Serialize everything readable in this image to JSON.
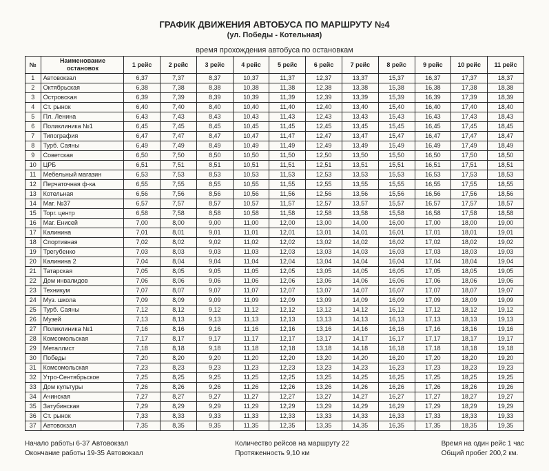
{
  "title": "ГРАФИК  ДВИЖЕНИЯ  АВТОБУСА  ПО  МАРШРУТУ  №4",
  "subtitle": "(ул. Победы - Котельная)",
  "subhead": "время прохождения автобуса по остановкам",
  "columns": [
    "№",
    "Наименование остановок",
    "1 рейс",
    "2 рейс",
    "3 рейс",
    "4 рейс",
    "5 рейс",
    "6 рейс",
    "7 рейс",
    "8 рейс",
    "9 рейс",
    "10 рейс",
    "11 рейс"
  ],
  "rows": [
    [
      "1",
      "Автовокзал",
      "6,37",
      "7,37",
      "8,37",
      "10,37",
      "11,37",
      "12,37",
      "13,37",
      "15,37",
      "16,37",
      "17,37",
      "18,37"
    ],
    [
      "2",
      "Октябрьская",
      "6,38",
      "7,38",
      "8,38",
      "10,38",
      "11,38",
      "12,38",
      "13,38",
      "15,38",
      "16,38",
      "17,38",
      "18,38"
    ],
    [
      "3",
      "Островская",
      "6,39",
      "7,39",
      "8,39",
      "10,39",
      "11,39",
      "12,39",
      "13,39",
      "15,39",
      "16,39",
      "17,39",
      "18,39"
    ],
    [
      "4",
      "Ст. рынок",
      "6,40",
      "7,40",
      "8,40",
      "10,40",
      "11,40",
      "12,40",
      "13,40",
      "15,40",
      "16,40",
      "17,40",
      "18,40"
    ],
    [
      "5",
      "Пл. Ленина",
      "6,43",
      "7,43",
      "8,43",
      "10,43",
      "11,43",
      "12,43",
      "13,43",
      "15,43",
      "16,43",
      "17,43",
      "18,43"
    ],
    [
      "6",
      "Поликлиника №1",
      "6,45",
      "7,45",
      "8,45",
      "10,45",
      "11,45",
      "12,45",
      "13,45",
      "15,45",
      "16,45",
      "17,45",
      "18,45"
    ],
    [
      "7",
      "Типография",
      "6,47",
      "7,47",
      "8,47",
      "10,47",
      "11,47",
      "12,47",
      "13,47",
      "15,47",
      "16,47",
      "17,47",
      "18,47"
    ],
    [
      "8",
      "Турб. Саяны",
      "6,49",
      "7,49",
      "8,49",
      "10,49",
      "11,49",
      "12,49",
      "13,49",
      "15,49",
      "16,49",
      "17,49",
      "18,49"
    ],
    [
      "9",
      "Советская",
      "6,50",
      "7,50",
      "8,50",
      "10,50",
      "11,50",
      "12,50",
      "13,50",
      "15,50",
      "16,50",
      "17,50",
      "18,50"
    ],
    [
      "10",
      "ЦРБ",
      "6,51",
      "7,51",
      "8,51",
      "10,51",
      "11,51",
      "12,51",
      "13,51",
      "15,51",
      "16,51",
      "17,51",
      "18,51"
    ],
    [
      "11",
      "Мебельный магазин",
      "6,53",
      "7,53",
      "8,53",
      "10,53",
      "11,53",
      "12,53",
      "13,53",
      "15,53",
      "16,53",
      "17,53",
      "18,53"
    ],
    [
      "12",
      "Перчаточная ф-ка",
      "6,55",
      "7,55",
      "8,55",
      "10,55",
      "11,55",
      "12,55",
      "13,55",
      "15,55",
      "16,55",
      "17,55",
      "18,55"
    ],
    [
      "13",
      "Котельная",
      "6,56",
      "7,56",
      "8,56",
      "10,56",
      "11,56",
      "12,56",
      "13,56",
      "15,56",
      "16,56",
      "17,56",
      "18,56"
    ],
    [
      "14",
      "Маг. №37",
      "6,57",
      "7,57",
      "8,57",
      "10,57",
      "11,57",
      "12,57",
      "13,57",
      "15,57",
      "16,57",
      "17,57",
      "18,57"
    ],
    [
      "15",
      "Торг. центр",
      "6,58",
      "7,58",
      "8,58",
      "10,58",
      "11,58",
      "12,58",
      "13,58",
      "15,58",
      "16,58",
      "17,58",
      "18,58"
    ],
    [
      "16",
      "Маг. Енисей",
      "7,00",
      "8,00",
      "9,00",
      "11,00",
      "12,00",
      "13,00",
      "14,00",
      "16,00",
      "17,00",
      "18,00",
      "19,00"
    ],
    [
      "17",
      "Калинина",
      "7,01",
      "8,01",
      "9,01",
      "11,01",
      "12,01",
      "13,01",
      "14,01",
      "16,01",
      "17,01",
      "18,01",
      "19,01"
    ],
    [
      "18",
      "Спортивная",
      "7,02",
      "8,02",
      "9,02",
      "11,02",
      "12,02",
      "13,02",
      "14,02",
      "16,02",
      "17,02",
      "18,02",
      "19,02"
    ],
    [
      "19",
      "Трегубенко",
      "7,03",
      "8,03",
      "9,03",
      "11,03",
      "12,03",
      "13,03",
      "14,03",
      "16,03",
      "17,03",
      "18,03",
      "19,03"
    ],
    [
      "20",
      "Калинина 2",
      "7,04",
      "8,04",
      "9,04",
      "11,04",
      "12,04",
      "13,04",
      "14,04",
      "16,04",
      "17,04",
      "18,04",
      "19,04"
    ],
    [
      "21",
      "Татарская",
      "7,05",
      "8,05",
      "9,05",
      "11,05",
      "12,05",
      "13,05",
      "14,05",
      "16,05",
      "17,05",
      "18,05",
      "19,05"
    ],
    [
      "22",
      "Дом инвалидов",
      "7,06",
      "8,06",
      "9,06",
      "11,06",
      "12,06",
      "13,06",
      "14,06",
      "16,06",
      "17,06",
      "18,06",
      "19,06"
    ],
    [
      "23",
      "Техникум",
      "7,07",
      "8,07",
      "9,07",
      "11,07",
      "12,07",
      "13,07",
      "14,07",
      "16,07",
      "17,07",
      "18,07",
      "19,07"
    ],
    [
      "24",
      "Муз. школа",
      "7,09",
      "8,09",
      "9,09",
      "11,09",
      "12,09",
      "13,09",
      "14,09",
      "16,09",
      "17,09",
      "18,09",
      "19,09"
    ],
    [
      "25",
      "Турб. Саяны",
      "7,12",
      "8,12",
      "9,12",
      "11,12",
      "12,12",
      "13,12",
      "14,12",
      "16,12",
      "17,12",
      "18,12",
      "19,12"
    ],
    [
      "26",
      "Музей",
      "7,13",
      "8,13",
      "9,13",
      "11,13",
      "12,13",
      "13,13",
      "14,13",
      "16,13",
      "17,13",
      "18,13",
      "19,13"
    ],
    [
      "27",
      "Поликлиника №1",
      "7,16",
      "8,16",
      "9,16",
      "11,16",
      "12,16",
      "13,16",
      "14,16",
      "16,16",
      "17,16",
      "18,16",
      "19,16"
    ],
    [
      "28",
      "Комсомольская",
      "7,17",
      "8,17",
      "9,17",
      "11,17",
      "12,17",
      "13,17",
      "14,17",
      "16,17",
      "17,17",
      "18,17",
      "19,17"
    ],
    [
      "29",
      "Металлист",
      "7,18",
      "8,18",
      "9,18",
      "11,18",
      "12,18",
      "13,18",
      "14,18",
      "16,18",
      "17,18",
      "18,18",
      "19,18"
    ],
    [
      "30",
      "Победы",
      "7,20",
      "8,20",
      "9,20",
      "11,20",
      "12,20",
      "13,20",
      "14,20",
      "16,20",
      "17,20",
      "18,20",
      "19,20"
    ],
    [
      "31",
      "Комсомольская",
      "7,23",
      "8,23",
      "9,23",
      "11,23",
      "12,23",
      "13,23",
      "14,23",
      "16,23",
      "17,23",
      "18,23",
      "19,23"
    ],
    [
      "32",
      "Утро-Сентябрьское",
      "7,25",
      "8,25",
      "9,25",
      "11,25",
      "12,25",
      "13,25",
      "14,25",
      "16,25",
      "17,25",
      "18,25",
      "19,25"
    ],
    [
      "33",
      "Дом культуры",
      "7,26",
      "8,26",
      "9,26",
      "11,26",
      "12,26",
      "13,26",
      "14,26",
      "16,26",
      "17,26",
      "18,26",
      "19,26"
    ],
    [
      "34",
      "Ачинская",
      "7,27",
      "8,27",
      "9,27",
      "11,27",
      "12,27",
      "13,27",
      "14,27",
      "16,27",
      "17,27",
      "18,27",
      "19,27"
    ],
    [
      "35",
      "Затубинская",
      "7,29",
      "8,29",
      "9,29",
      "11,29",
      "12,29",
      "13,29",
      "14,29",
      "16,29",
      "17,29",
      "18,29",
      "19,29"
    ],
    [
      "36",
      "Ст. рынок",
      "7,33",
      "8,33",
      "9,33",
      "11,33",
      "12,33",
      "13,33",
      "14,33",
      "16,33",
      "17,33",
      "18,33",
      "19,33"
    ],
    [
      "37",
      "Автовокзал",
      "7,35",
      "8,35",
      "9,35",
      "11,35",
      "12,35",
      "13,35",
      "14,35",
      "16,35",
      "17,35",
      "18,35",
      "19,35"
    ]
  ],
  "footer": {
    "left": [
      "Начало работы 6-37 Автовокзал",
      "Окончание работы 19-35 Автовокзал"
    ],
    "center": [
      "Количество рейсов на маршруту 22",
      "Протяженность 9,10 км"
    ],
    "right": [
      "Время на один рейс 1 час",
      "Общий пробег 200,2 км."
    ]
  }
}
